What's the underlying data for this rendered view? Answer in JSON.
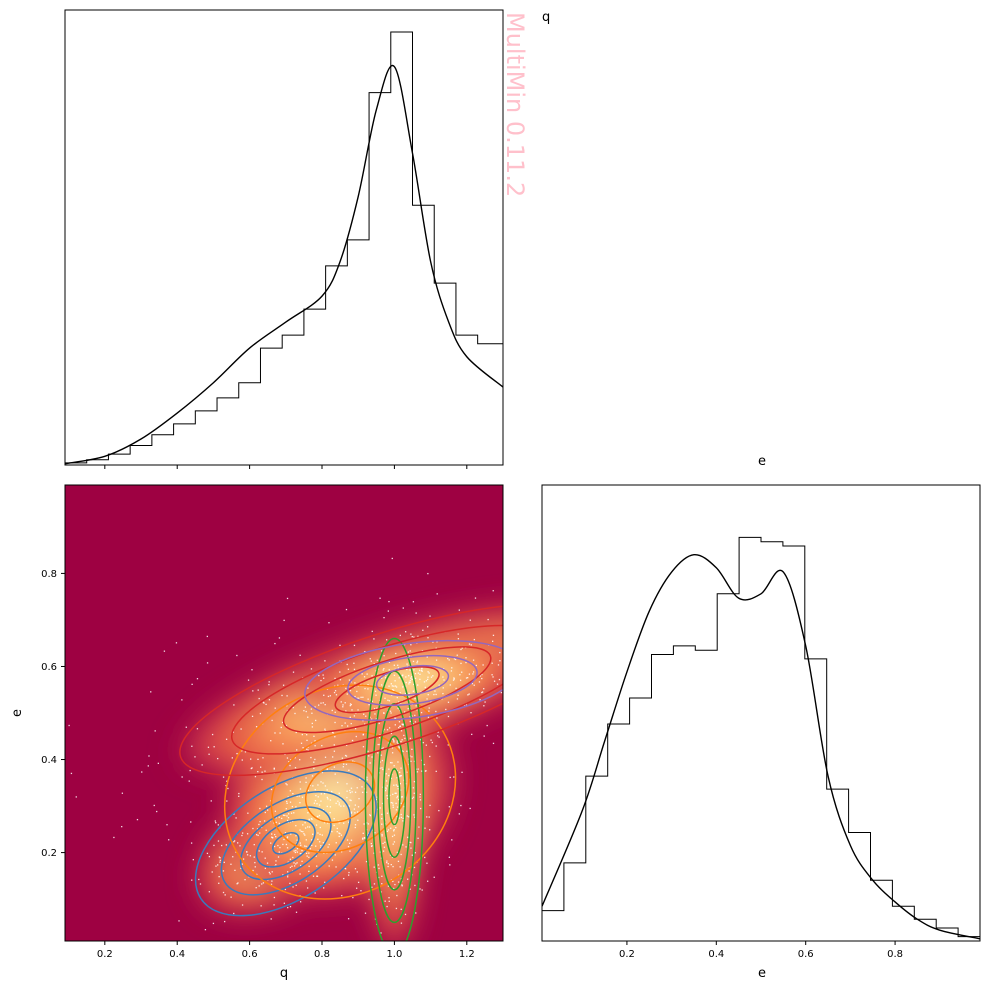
{
  "watermark": "MultiMin 0.11.2",
  "chart_data": [
    {
      "type": "histogram",
      "panel": "top-left",
      "variable": "q",
      "title": "q",
      "xlim": [
        0.09,
        1.3
      ],
      "ylim": [
        0,
        1.0
      ],
      "bin_edges": [
        0.09,
        0.15,
        0.21,
        0.27,
        0.33,
        0.39,
        0.45,
        0.51,
        0.57,
        0.63,
        0.69,
        0.75,
        0.81,
        0.87,
        0.93,
        0.99,
        1.05,
        1.11,
        1.17,
        1.23,
        1.3
      ],
      "counts": [
        0.005,
        0.012,
        0.025,
        0.045,
        0.07,
        0.095,
        0.125,
        0.155,
        0.19,
        0.27,
        0.3,
        0.36,
        0.46,
        0.52,
        0.86,
        1.0,
        0.6,
        0.42,
        0.3,
        0.28
      ],
      "pdf_x": [
        0.09,
        0.2,
        0.3,
        0.4,
        0.5,
        0.6,
        0.7,
        0.8,
        0.85,
        0.9,
        0.95,
        1.0,
        1.05,
        1.1,
        1.15,
        1.2,
        1.3
      ],
      "pdf_y": [
        0.003,
        0.02,
        0.06,
        0.12,
        0.19,
        0.27,
        0.33,
        0.39,
        0.47,
        0.62,
        0.82,
        0.92,
        0.72,
        0.47,
        0.33,
        0.25,
        0.18
      ]
    },
    {
      "type": "histogram",
      "panel": "bottom-right",
      "variable": "e",
      "title": "e",
      "xlabel": "e",
      "xlim": [
        0.01,
        0.99
      ],
      "ylim": [
        0,
        1.0
      ],
      "xticks": [
        "0.2",
        "0.4",
        "0.6",
        "0.8"
      ],
      "bin_edges": [
        0.01,
        0.059,
        0.108,
        0.157,
        0.206,
        0.255,
        0.304,
        0.353,
        0.402,
        0.451,
        0.5,
        0.549,
        0.598,
        0.647,
        0.696,
        0.745,
        0.794,
        0.843,
        0.892,
        0.941,
        0.99
      ],
      "counts": [
        0.07,
        0.18,
        0.38,
        0.5,
        0.56,
        0.66,
        0.68,
        0.67,
        0.8,
        0.93,
        0.92,
        0.91,
        0.65,
        0.35,
        0.25,
        0.14,
        0.08,
        0.05,
        0.03,
        0.01
      ],
      "pdf_x": [
        0.01,
        0.1,
        0.15,
        0.2,
        0.25,
        0.3,
        0.35,
        0.4,
        0.45,
        0.5,
        0.55,
        0.6,
        0.65,
        0.7,
        0.75,
        0.8,
        0.85,
        0.9,
        0.99
      ],
      "pdf_y": [
        0.08,
        0.3,
        0.46,
        0.62,
        0.76,
        0.85,
        0.89,
        0.86,
        0.79,
        0.8,
        0.85,
        0.68,
        0.38,
        0.22,
        0.14,
        0.09,
        0.05,
        0.025,
        0.005
      ]
    },
    {
      "type": "scatter",
      "panel": "bottom-left",
      "xlabel": "q",
      "ylabel": "e",
      "xlim": [
        0.09,
        1.3
      ],
      "ylim": [
        0.01,
        0.99
      ],
      "xticks": [
        "0.2",
        "0.4",
        "0.6",
        "0.8",
        "1.0",
        "1.2"
      ],
      "yticks": [
        "0.2",
        "0.4",
        "0.6",
        "0.8"
      ],
      "background_color": "#9e0142",
      "density_colormap": [
        "#9e0142",
        "#d53e4f",
        "#f46d43",
        "#fdae61",
        "#fee08b",
        "#ffffbf"
      ],
      "components": [
        {
          "color": "#3a7abd",
          "center": [
            0.7,
            0.22
          ],
          "ellipses": [
            {
              "rx": 0.04,
              "ry": 0.018
            },
            {
              "rx": 0.09,
              "ry": 0.04
            },
            {
              "rx": 0.14,
              "ry": 0.06
            },
            {
              "rx": 0.2,
              "ry": 0.085
            },
            {
              "rx": 0.28,
              "ry": 0.12
            }
          ],
          "angle": -33
        },
        {
          "color": "#ff7f0e",
          "center": [
            0.85,
            0.33
          ],
          "ellipses": [
            {
              "rx": 0.1,
              "ry": 0.06
            },
            {
              "rx": 0.2,
              "ry": 0.12
            },
            {
              "rx": 0.33,
              "ry": 0.22
            }
          ],
          "angle": -30
        },
        {
          "color": "#2ca02c",
          "center": [
            1.0,
            0.32
          ],
          "ellipses": [
            {
              "rx": 0.015,
              "ry": 0.06
            },
            {
              "rx": 0.03,
              "ry": 0.13
            },
            {
              "rx": 0.045,
              "ry": 0.2
            },
            {
              "rx": 0.06,
              "ry": 0.27
            },
            {
              "rx": 0.08,
              "ry": 0.34
            }
          ],
          "angle": 0
        },
        {
          "color": "#d62728",
          "center": [
            0.98,
            0.55
          ],
          "ellipses": [
            {
              "rx": 0.15,
              "ry": 0.035
            },
            {
              "rx": 0.3,
              "ry": 0.06
            },
            {
              "rx": 0.45,
              "ry": 0.09
            },
            {
              "rx": 0.6,
              "ry": 0.12
            }
          ],
          "angle": -18
        },
        {
          "color": "#9467bd",
          "center": [
            1.05,
            0.57
          ],
          "ellipses": [
            {
              "rx": 0.1,
              "ry": 0.03
            },
            {
              "rx": 0.18,
              "ry": 0.05
            },
            {
              "rx": 0.3,
              "ry": 0.08
            }
          ],
          "angle": -8
        }
      ]
    }
  ]
}
